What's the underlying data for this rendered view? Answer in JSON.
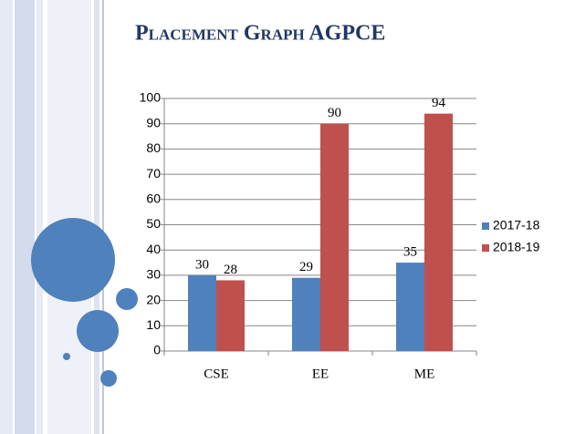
{
  "chart_data": {
    "type": "bar",
    "title": "Placement Graph AGPCE",
    "categories": [
      "CSE",
      "EE",
      "ME"
    ],
    "series": [
      {
        "name": "2017-18",
        "color": "#4f81bd",
        "values": [
          30,
          29,
          35
        ]
      },
      {
        "name": "2018-19",
        "color": "#c0504d",
        "values": [
          28,
          90,
          94
        ]
      }
    ],
    "ylim": [
      0,
      100
    ],
    "yticks": [
      0,
      10,
      20,
      30,
      40,
      50,
      60,
      70,
      80,
      90,
      100
    ],
    "grid": true,
    "legend": "right"
  }
}
